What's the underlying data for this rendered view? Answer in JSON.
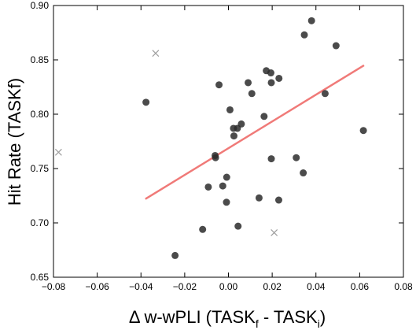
{
  "chart_data": {
    "type": "scatter",
    "xlabel": {
      "prefix": "Δ w-wPLI (TASK",
      "sub1": "f",
      "middle": " - TASK",
      "sub2": "i",
      "suffix": ")"
    },
    "ylabel": "Hit Rate (TASKf)",
    "xlim": [
      -0.08,
      0.08
    ],
    "ylim": [
      0.65,
      0.9
    ],
    "x_ticks": [
      "−0.08",
      "−0.06",
      "−0.04",
      "−0.02",
      "0.00",
      "0.02",
      "0.04",
      "0.06",
      "0.08"
    ],
    "x_tick_values": [
      -0.08,
      -0.06,
      -0.04,
      -0.02,
      0.0,
      0.02,
      0.04,
      0.06,
      0.08
    ],
    "y_ticks": [
      "0.65",
      "0.70",
      "0.75",
      "0.80",
      "0.85",
      "0.90"
    ],
    "y_tick_values": [
      0.65,
      0.7,
      0.75,
      0.8,
      0.85,
      0.9
    ],
    "grid": false,
    "points": [
      {
        "x": -0.0377,
        "y": 0.811
      },
      {
        "x": -0.0244,
        "y": 0.67
      },
      {
        "x": -0.0118,
        "y": 0.694
      },
      {
        "x": -0.0092,
        "y": 0.733
      },
      {
        "x": -0.0061,
        "y": 0.762
      },
      {
        "x": -0.0059,
        "y": 0.76
      },
      {
        "x": -0.0043,
        "y": 0.827
      },
      {
        "x": -0.0026,
        "y": 0.734
      },
      {
        "x": -0.0009,
        "y": 0.719
      },
      {
        "x": -0.0008,
        "y": 0.742
      },
      {
        "x": 0.0007,
        "y": 0.804
      },
      {
        "x": 0.0023,
        "y": 0.787
      },
      {
        "x": 0.0025,
        "y": 0.78
      },
      {
        "x": 0.0041,
        "y": 0.787
      },
      {
        "x": 0.0044,
        "y": 0.697
      },
      {
        "x": 0.0059,
        "y": 0.791
      },
      {
        "x": 0.009,
        "y": 0.829
      },
      {
        "x": 0.0107,
        "y": 0.819
      },
      {
        "x": 0.014,
        "y": 0.723
      },
      {
        "x": 0.0163,
        "y": 0.798
      },
      {
        "x": 0.0173,
        "y": 0.84
      },
      {
        "x": 0.0194,
        "y": 0.838
      },
      {
        "x": 0.0196,
        "y": 0.829
      },
      {
        "x": 0.0196,
        "y": 0.759
      },
      {
        "x": 0.023,
        "y": 0.721
      },
      {
        "x": 0.0231,
        "y": 0.833
      },
      {
        "x": 0.031,
        "y": 0.76
      },
      {
        "x": 0.0342,
        "y": 0.746
      },
      {
        "x": 0.0347,
        "y": 0.873
      },
      {
        "x": 0.038,
        "y": 0.886
      },
      {
        "x": 0.0442,
        "y": 0.819
      },
      {
        "x": 0.0492,
        "y": 0.863
      },
      {
        "x": 0.0617,
        "y": 0.785
      }
    ],
    "outliers": [
      {
        "x": -0.0777,
        "y": 0.765
      },
      {
        "x": -0.0333,
        "y": 0.856
      },
      {
        "x": 0.0209,
        "y": 0.691
      }
    ],
    "fit_line": {
      "x": [
        -0.038,
        0.062
      ],
      "y": [
        0.722,
        0.845
      ]
    },
    "colors": {
      "point": "#2b2b2b",
      "outlier": "#9e9e9e",
      "fit": "#f07a78",
      "axis": "#000000"
    }
  }
}
